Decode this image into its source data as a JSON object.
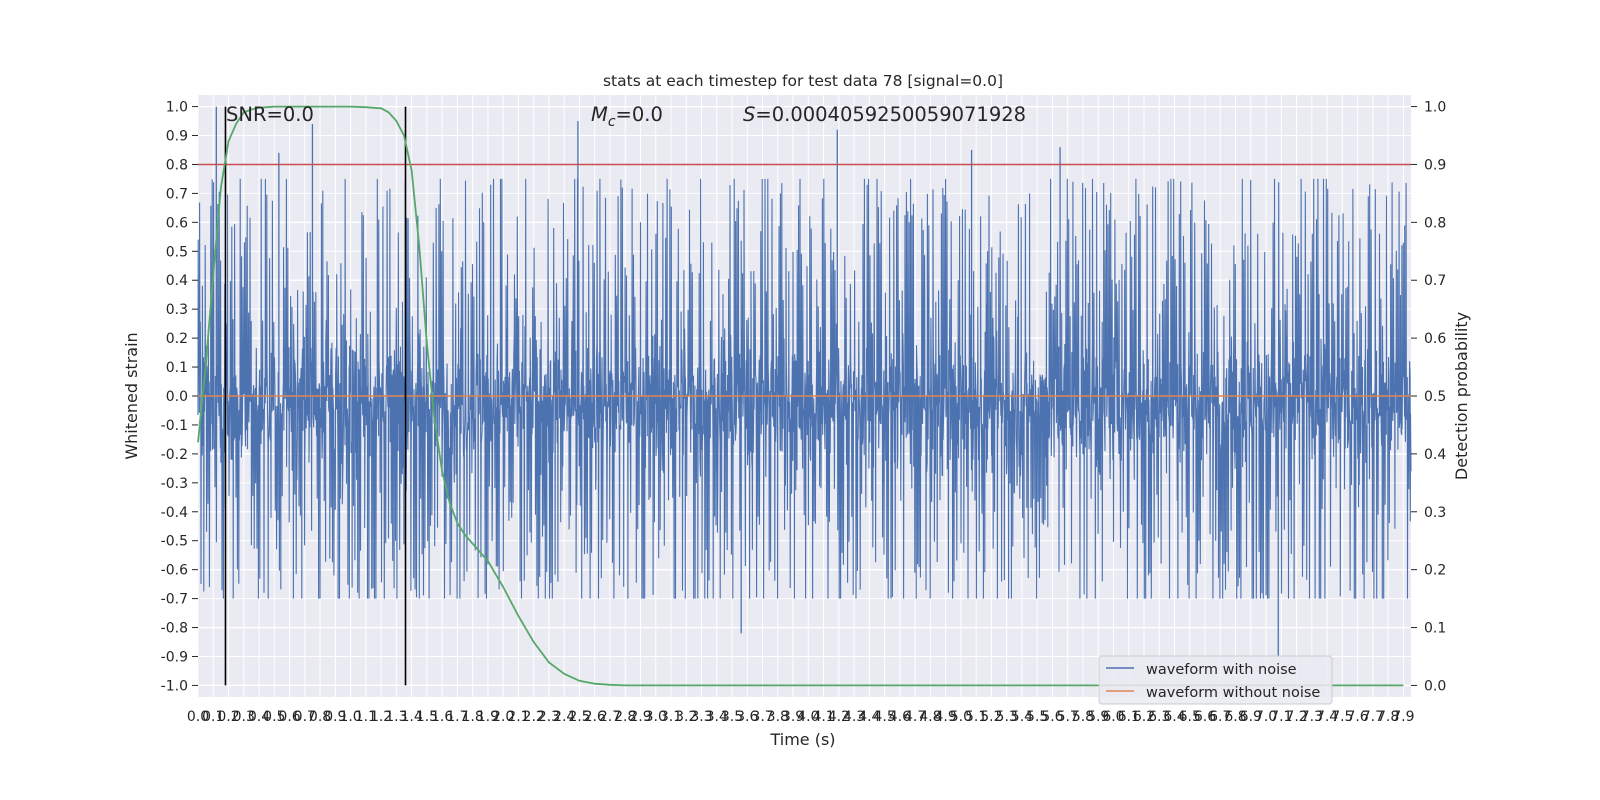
{
  "chart_data": {
    "type": "line",
    "title": "stats at each timestep for test data 78 [signal=0.0]",
    "annotations": {
      "snr": "SNR=0.0",
      "mc_symbol": "M",
      "mc_subscript": "c",
      "mc_value": "=0.0",
      "s_symbol": "S",
      "s_value": "=0.0004059250059071928"
    },
    "xlabel": "Time (s)",
    "ylabel": "Whitened strain",
    "y2label": "Detection probability",
    "xlim": [
      0.0,
      7.95
    ],
    "ylim": [
      -1.04,
      1.04
    ],
    "y2lim": [
      -0.02,
      1.02
    ],
    "x_ticks": [
      "0.0",
      "0.1",
      "0.2",
      "0.3",
      "0.4",
      "0.5",
      "0.6",
      "0.7",
      "0.8",
      "0.9",
      "1.0",
      "1.1",
      "1.2",
      "1.3",
      "1.4",
      "1.5",
      "1.6",
      "1.7",
      "1.8",
      "1.9",
      "2.0",
      "2.1",
      "2.2",
      "2.3",
      "2.4",
      "2.5",
      "2.6",
      "2.7",
      "2.8",
      "2.9",
      "3.0",
      "3.1",
      "3.2",
      "3.3",
      "3.4",
      "3.5",
      "3.6",
      "3.7",
      "3.8",
      "3.9",
      "4.0",
      "4.1",
      "4.2",
      "4.3",
      "4.4",
      "4.5",
      "4.6",
      "4.7",
      "4.8",
      "4.9",
      "5.0",
      "5.1",
      "5.2",
      "5.3",
      "5.4",
      "5.5",
      "5.6",
      "5.7",
      "5.8",
      "5.9",
      "6.0",
      "6.1",
      "6.2",
      "6.3",
      "6.4",
      "6.5",
      "6.6",
      "6.7",
      "6.8",
      "6.9",
      "7.0",
      "7.1",
      "7.2",
      "7.3",
      "7.4",
      "7.5",
      "7.6",
      "7.7",
      "7.8",
      "7.9"
    ],
    "y_ticks": [
      "1.0",
      "0.9",
      "0.8",
      "0.7",
      "0.6",
      "0.5",
      "0.4",
      "0.3",
      "0.2",
      "0.1",
      "0.0",
      "-0.1",
      "-0.2",
      "-0.3",
      "-0.4",
      "-0.5",
      "-0.6",
      "-0.7",
      "-0.8",
      "-0.9",
      "-1.0"
    ],
    "y2_ticks": [
      "1.0",
      "0.9",
      "0.8",
      "0.7",
      "0.6",
      "0.5",
      "0.4",
      "0.3",
      "0.2",
      "0.1",
      "0.0"
    ],
    "threshold": 0.9,
    "vlines": [
      0.18,
      1.36
    ],
    "grid": true,
    "legend_position": "bottom-right",
    "series": [
      {
        "name": "waveform with noise",
        "color": "#4c72b0",
        "summary": "dense whitened noise, band about -0.35 to 0.30 with spikes to about +/-1.0",
        "envelope_peaks": [
          {
            "x": 0.12,
            "y": 1.0
          },
          {
            "x": 0.53,
            "y": 0.84
          },
          {
            "x": 0.75,
            "y": 0.94
          },
          {
            "x": 2.49,
            "y": 0.95
          },
          {
            "x": 4.19,
            "y": 0.92
          },
          {
            "x": 5.07,
            "y": 0.85
          },
          {
            "x": 5.65,
            "y": 0.86
          },
          {
            "x": 7.08,
            "y": -0.9
          },
          {
            "x": 3.56,
            "y": -0.82
          }
        ]
      },
      {
        "name": "waveform without noise",
        "color": "#dd8452",
        "x": [
          0.0,
          7.95
        ],
        "y": [
          0.0,
          0.0
        ]
      },
      {
        "name": "Detection probability",
        "color": "#55a868",
        "axis": "right",
        "x": [
          0.0,
          0.05,
          0.1,
          0.15,
          0.2,
          0.25,
          0.3,
          0.35,
          0.4,
          0.45,
          0.5,
          0.6,
          0.8,
          1.0,
          1.1,
          1.2,
          1.25,
          1.3,
          1.35,
          1.4,
          1.45,
          1.5,
          1.55,
          1.6,
          1.65,
          1.7,
          1.75,
          1.8,
          1.9,
          2.0,
          2.1,
          2.2,
          2.3,
          2.4,
          2.5,
          2.6,
          2.7,
          2.8,
          3.0,
          4.0,
          5.0,
          6.0,
          7.0,
          7.9
        ],
        "y": [
          0.42,
          0.55,
          0.71,
          0.86,
          0.94,
          0.97,
          0.99,
          0.995,
          0.998,
          0.999,
          1.0,
          1.0,
          1.0,
          1.0,
          0.999,
          0.997,
          0.99,
          0.975,
          0.95,
          0.89,
          0.76,
          0.59,
          0.46,
          0.37,
          0.315,
          0.28,
          0.26,
          0.245,
          0.215,
          0.17,
          0.12,
          0.075,
          0.04,
          0.02,
          0.008,
          0.003,
          0.001,
          0.0,
          0.0,
          0.0,
          0.0,
          0.0,
          0.0,
          0.0
        ]
      }
    ]
  }
}
